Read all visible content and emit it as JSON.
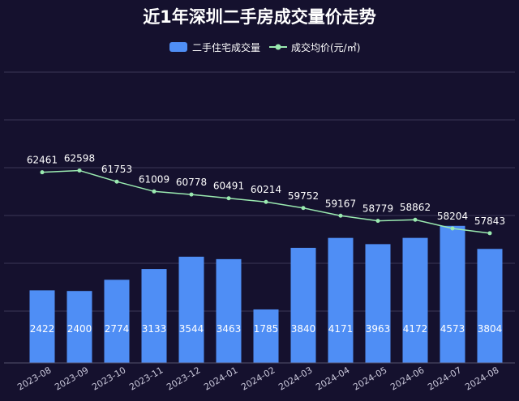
{
  "title": "近1年深圳二手房成交量价走势",
  "colors": {
    "background": "#15112e",
    "bar": "#4f8ef5",
    "line": "#9aeab0",
    "text": "#ffffff"
  },
  "chart_data": {
    "type": "bar",
    "title": "近1年深圳二手房成交量价走势",
    "categories": [
      "2023-08",
      "2023-09",
      "2023-10",
      "2023-11",
      "2023-12",
      "2024-01",
      "2024-02",
      "2024-03",
      "2024-04",
      "2024-05",
      "2024-06",
      "2024-07",
      "2024-08"
    ],
    "series": [
      {
        "name": "二手住宅成交量",
        "type": "bar",
        "values": [
          2422,
          2400,
          2774,
          3133,
          3544,
          3463,
          1785,
          3840,
          4171,
          3963,
          4172,
          4573,
          3804
        ]
      },
      {
        "name": "成交均价(元/㎡)",
        "type": "line",
        "values": [
          62461,
          62598,
          61753,
          61009,
          60778,
          60491,
          60214,
          59752,
          59167,
          58779,
          58862,
          58204,
          57843
        ]
      }
    ],
    "legend_position": "top-center",
    "grid": true,
    "bar_ylim": [
      0,
      5000
    ],
    "line_ylim": [
      48000,
      70000
    ]
  }
}
